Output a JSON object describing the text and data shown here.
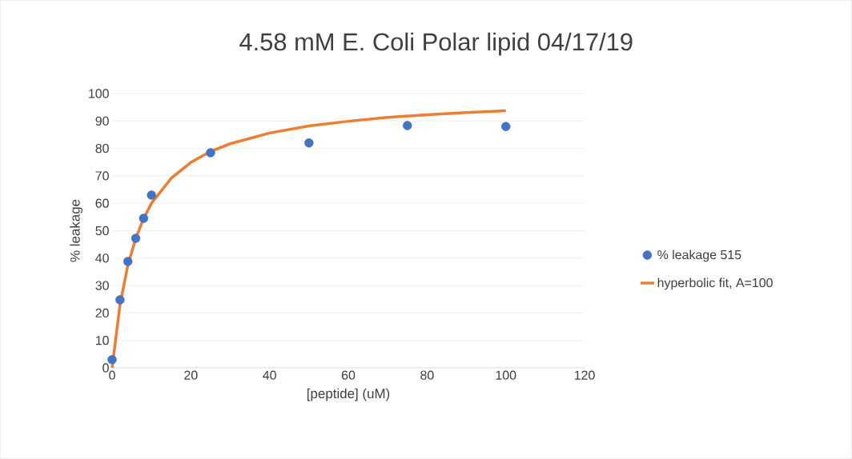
{
  "chart_data": {
    "type": "scatter",
    "title": "4.58 mM E. Coli Polar lipid 04/17/19",
    "xlabel": "[peptide] (uM)",
    "ylabel": "% leakage",
    "xlim": [
      0,
      120
    ],
    "xticks": [
      0,
      20,
      40,
      60,
      80,
      100,
      120
    ],
    "ylim": [
      0,
      100
    ],
    "yticks": [
      0,
      10,
      20,
      30,
      40,
      50,
      60,
      70,
      80,
      90,
      100
    ],
    "grid": "y",
    "legend": "right",
    "series": [
      {
        "name": "% leakage 515",
        "marker": "circle",
        "color": "#4472c4",
        "x": [
          0,
          2,
          4,
          6,
          8,
          10,
          25,
          50,
          75,
          100
        ],
        "values": [
          3,
          24.8,
          38.8,
          47.2,
          54.5,
          63,
          78.4,
          82,
          88.3,
          88
        ]
      },
      {
        "name": "hyperbolic fit, A=100",
        "type": "line",
        "marker": "none",
        "color": "#ed7d31",
        "x": [
          0,
          2,
          4,
          6,
          8,
          10,
          15,
          20,
          25,
          30,
          40,
          50,
          60,
          70,
          80,
          90,
          100
        ],
        "values": [
          0,
          23,
          37.4,
          47.2,
          54.4,
          60,
          69.1,
          74.9,
          78.9,
          81.7,
          85.6,
          88.2,
          89.9,
          91.3,
          92.3,
          93.1,
          93.7
        ]
      }
    ]
  }
}
